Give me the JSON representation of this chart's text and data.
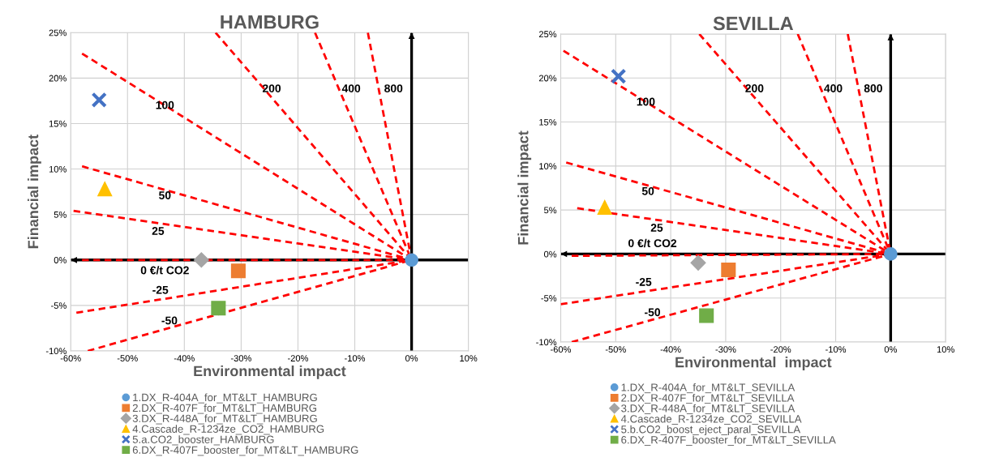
{
  "chart_data": [
    {
      "type": "scatter",
      "title": "HAMBURG",
      "xlabel": "Environmental impact",
      "ylabel": "Financial impact",
      "xlim": [
        -60,
        10
      ],
      "xticks": [
        {
          "value": -60,
          "label": "-60%"
        },
        {
          "value": -50,
          "label": "-50%"
        },
        {
          "value": -40,
          "label": "-40%"
        },
        {
          "value": -30,
          "label": "-30%"
        },
        {
          "value": -20,
          "label": "-20%"
        },
        {
          "value": -10,
          "label": "-10%"
        },
        {
          "value": 0,
          "label": "0%"
        },
        {
          "value": 10,
          "label": "10%"
        }
      ],
      "ylim": [
        -10,
        25
      ],
      "yticks": [
        {
          "value": -10,
          "label": "-10%"
        },
        {
          "value": -5,
          "label": "-5%"
        },
        {
          "value": 0,
          "label": "0%"
        },
        {
          "value": 5,
          "label": "5%"
        },
        {
          "value": 10,
          "label": "10%"
        },
        {
          "value": 15,
          "label": "15%"
        },
        {
          "value": 20,
          "label": "20%"
        },
        {
          "value": 25,
          "label": "25%"
        }
      ],
      "grid": true,
      "legend": "bottom",
      "series": [
        {
          "type": "line",
          "color": "#000000",
          "line_style": "solid",
          "marker": "none",
          "x": [
            10,
            -60
          ],
          "values": [
            0,
            0
          ]
        },
        {
          "type": "line",
          "color": "#000000",
          "line_style": "solid",
          "marker": "none",
          "x": [
            0,
            0
          ],
          "values": [
            -10,
            25
          ]
        },
        {
          "name": "0 €/t CO2",
          "type": "line",
          "color": "#ff0000",
          "line_style": "dashed",
          "marker": "none",
          "x": [
            0,
            -58
          ],
          "values": [
            0,
            0
          ]
        },
        {
          "name": "25",
          "type": "line",
          "color": "#ff0000",
          "line_style": "dashed",
          "marker": "none",
          "x": [
            0,
            -59.5
          ],
          "values": [
            0,
            5.4
          ]
        },
        {
          "name": "50",
          "type": "line",
          "color": "#ff0000",
          "line_style": "dashed",
          "marker": "none",
          "x": [
            0,
            -58
          ],
          "values": [
            0,
            10.3
          ]
        },
        {
          "name": "100",
          "type": "line",
          "color": "#ff0000",
          "line_style": "dashed",
          "marker": "none",
          "x": [
            0,
            -58
          ],
          "values": [
            0,
            22.7
          ]
        },
        {
          "name": "200",
          "type": "line",
          "color": "#ff0000",
          "line_style": "dashed",
          "marker": "none",
          "x": [
            0,
            -34.5
          ],
          "values": [
            0,
            25
          ]
        },
        {
          "name": "400",
          "type": "line",
          "color": "#ff0000",
          "line_style": "dashed",
          "marker": "none",
          "x": [
            0,
            -17
          ],
          "values": [
            0,
            25
          ]
        },
        {
          "name": "800",
          "type": "line",
          "color": "#ff0000",
          "line_style": "dashed",
          "marker": "none",
          "x": [
            0,
            -7.7
          ],
          "values": [
            0,
            25
          ]
        },
        {
          "name": "-25",
          "type": "line",
          "color": "#ff0000",
          "line_style": "dashed",
          "marker": "none",
          "x": [
            0,
            -59
          ],
          "values": [
            0,
            -5.8
          ]
        },
        {
          "name": "-50",
          "type": "line",
          "color": "#ff0000",
          "line_style": "dashed",
          "marker": "none",
          "x": [
            0,
            -57
          ],
          "values": [
            0,
            -10
          ]
        },
        {
          "name": "1.DX_R-404A_for_MT&LT_HAMBURG",
          "color": "#5b9bd5",
          "marker": "circle",
          "x": [
            0
          ],
          "values": [
            0
          ]
        },
        {
          "name": "2.DX_R-407F_for_MT&LT_HAMBURG",
          "color": "#ed7d31",
          "marker": "square",
          "x": [
            -30.5
          ],
          "values": [
            -1.2
          ]
        },
        {
          "name": "3.DX_R-448A_for_MT&LT_HAMBURG",
          "color": "#a5a5a5",
          "marker": "diamond",
          "x": [
            -37
          ],
          "values": [
            0
          ]
        },
        {
          "name": "4.Cascade_R-1234ze_CO2_HAMBURG",
          "color": "#ffc000",
          "marker": "triangle",
          "x": [
            -54
          ],
          "values": [
            7.8
          ]
        },
        {
          "name": "5.a.CO2_booster_HAMBURG",
          "color": "#4472c4",
          "marker": "cross",
          "x": [
            -55
          ],
          "values": [
            17.6
          ]
        },
        {
          "name": "6.DX_R-407F_booster_for_MT&LT_HAMBURG",
          "color": "#70ad47",
          "marker": "square",
          "x": [
            -34
          ],
          "values": [
            -5.3
          ]
        }
      ]
    },
    {
      "type": "scatter",
      "title": "SEVILLA",
      "xlabel": "Environmental  impact",
      "ylabel": "Financial impact",
      "xlim": [
        -60,
        10
      ],
      "xticks": [
        {
          "value": -60,
          "label": "-60%"
        },
        {
          "value": -50,
          "label": "-50%"
        },
        {
          "value": -40,
          "label": "-40%"
        },
        {
          "value": -30,
          "label": "-30%"
        },
        {
          "value": -20,
          "label": "-20%"
        },
        {
          "value": -10,
          "label": "-10%"
        },
        {
          "value": 0,
          "label": "0%"
        },
        {
          "value": 10,
          "label": "10%"
        }
      ],
      "ylim": [
        -10,
        25
      ],
      "yticks": [
        {
          "value": -10,
          "label": "-10%"
        },
        {
          "value": -5,
          "label": "-5%"
        },
        {
          "value": 0,
          "label": "0%"
        },
        {
          "value": 5,
          "label": "5%"
        },
        {
          "value": 10,
          "label": "10%"
        },
        {
          "value": 15,
          "label": "15%"
        },
        {
          "value": 20,
          "label": "20%"
        },
        {
          "value": 25,
          "label": "25%"
        }
      ],
      "grid": true,
      "legend": "bottom",
      "series": [
        {
          "type": "line",
          "color": "#000000",
          "line_style": "solid",
          "marker": "none",
          "x": [
            10,
            -60
          ],
          "values": [
            0,
            0
          ]
        },
        {
          "type": "line",
          "color": "#000000",
          "line_style": "solid",
          "marker": "none",
          "x": [
            0,
            0
          ],
          "values": [
            -10,
            25
          ]
        },
        {
          "name": "0 €/t CO2",
          "type": "line",
          "color": "#ff0000",
          "line_style": "dashed",
          "marker": "none",
          "x": [
            0,
            -58
          ],
          "values": [
            0,
            -0.2
          ]
        },
        {
          "name": "25",
          "type": "line",
          "color": "#ff0000",
          "line_style": "dashed",
          "marker": "none",
          "x": [
            0,
            -57
          ],
          "values": [
            0,
            5.2
          ]
        },
        {
          "name": "50",
          "type": "line",
          "color": "#ff0000",
          "line_style": "dashed",
          "marker": "none",
          "x": [
            0,
            -59
          ],
          "values": [
            0,
            10.4
          ]
        },
        {
          "name": "100",
          "type": "line",
          "color": "#ff0000",
          "line_style": "dashed",
          "marker": "none",
          "x": [
            0,
            -59.5
          ],
          "values": [
            0,
            23.1
          ]
        },
        {
          "name": "200",
          "type": "line",
          "color": "#ff0000",
          "line_style": "dashed",
          "marker": "none",
          "x": [
            0,
            -34.8
          ],
          "values": [
            0,
            25
          ]
        },
        {
          "name": "400",
          "type": "line",
          "color": "#ff0000",
          "line_style": "dashed",
          "marker": "none",
          "x": [
            0,
            -16.9
          ],
          "values": [
            0,
            25
          ]
        },
        {
          "name": "800",
          "type": "line",
          "color": "#ff0000",
          "line_style": "dashed",
          "marker": "none",
          "x": [
            0,
            -7.8
          ],
          "values": [
            0,
            25
          ]
        },
        {
          "name": "-25",
          "type": "line",
          "color": "#ff0000",
          "line_style": "dashed",
          "marker": "none",
          "x": [
            0,
            -60
          ],
          "values": [
            0,
            -5.7
          ]
        },
        {
          "name": "-50",
          "type": "line",
          "color": "#ff0000",
          "line_style": "dashed",
          "marker": "none",
          "x": [
            0,
            -58
          ],
          "values": [
            0,
            -10
          ]
        },
        {
          "name": "1.DX_R-404A_for_MT&LT_SEVILLA",
          "color": "#5b9bd5",
          "marker": "circle",
          "x": [
            0
          ],
          "values": [
            0
          ]
        },
        {
          "name": "2.DX_R-407F_for_MT&LT_SEVILLA",
          "color": "#ed7d31",
          "marker": "square",
          "x": [
            -29.5
          ],
          "values": [
            -1.8
          ]
        },
        {
          "name": "3.DX_R-448A_for_MT&LT_SEVILLA",
          "color": "#a5a5a5",
          "marker": "diamond",
          "x": [
            -35
          ],
          "values": [
            -1
          ]
        },
        {
          "name": "4.Cascade_R-1234ze_CO2_SEVILLA",
          "color": "#ffc000",
          "marker": "triangle",
          "x": [
            -52
          ],
          "values": [
            5.3
          ]
        },
        {
          "name": "5.b.CO2_boost_eject_paral_SEVILLA",
          "color": "#4472c4",
          "marker": "cross",
          "x": [
            -49.5
          ],
          "values": [
            20.2
          ]
        },
        {
          "name": "6.DX_R-407F_booster_for_MT&LT_SEVILLA",
          "color": "#70ad47",
          "marker": "square",
          "x": [
            -33.5
          ],
          "values": [
            -7
          ]
        }
      ]
    }
  ]
}
